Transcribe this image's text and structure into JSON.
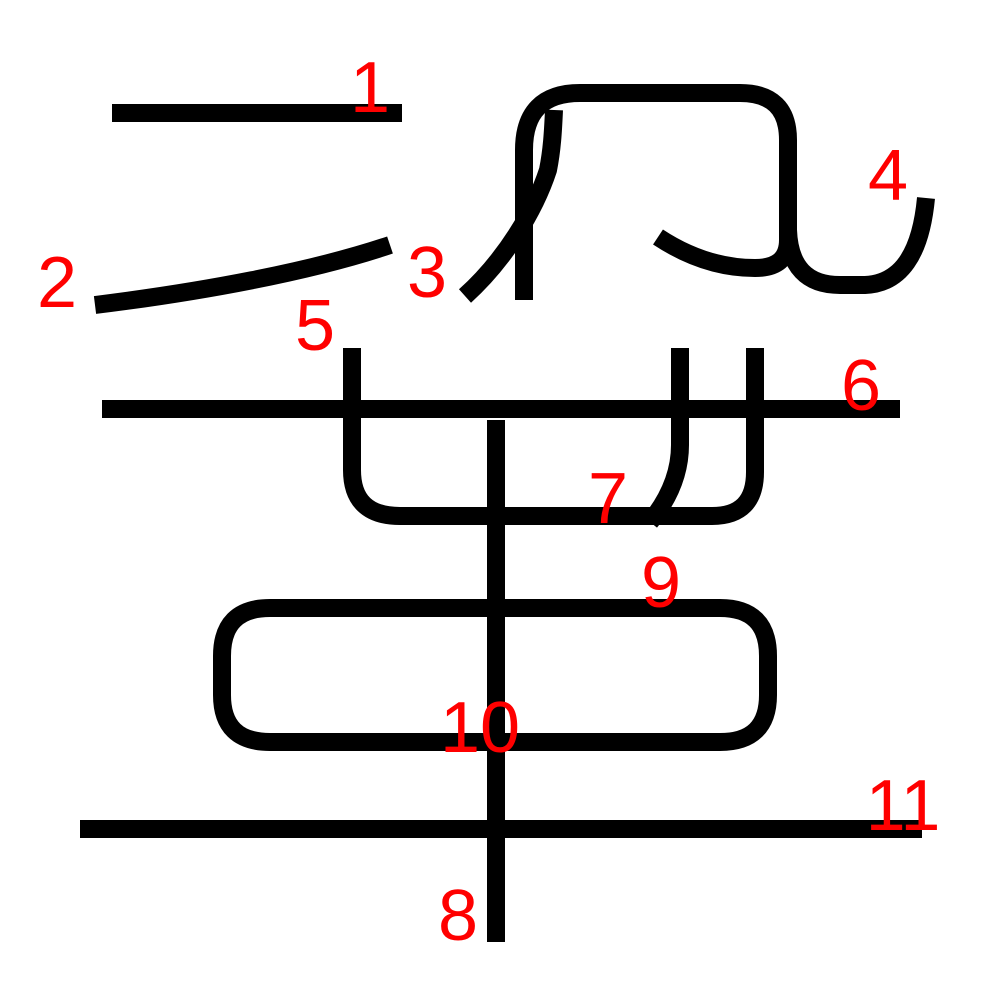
{
  "stroke_labels": [
    "1",
    "2",
    "3",
    "4",
    "5",
    "6",
    "7",
    "8",
    "9",
    "10",
    "11"
  ],
  "colors": {
    "background": "#ffffff",
    "stroke": "#000000",
    "label": "#ff0000"
  }
}
